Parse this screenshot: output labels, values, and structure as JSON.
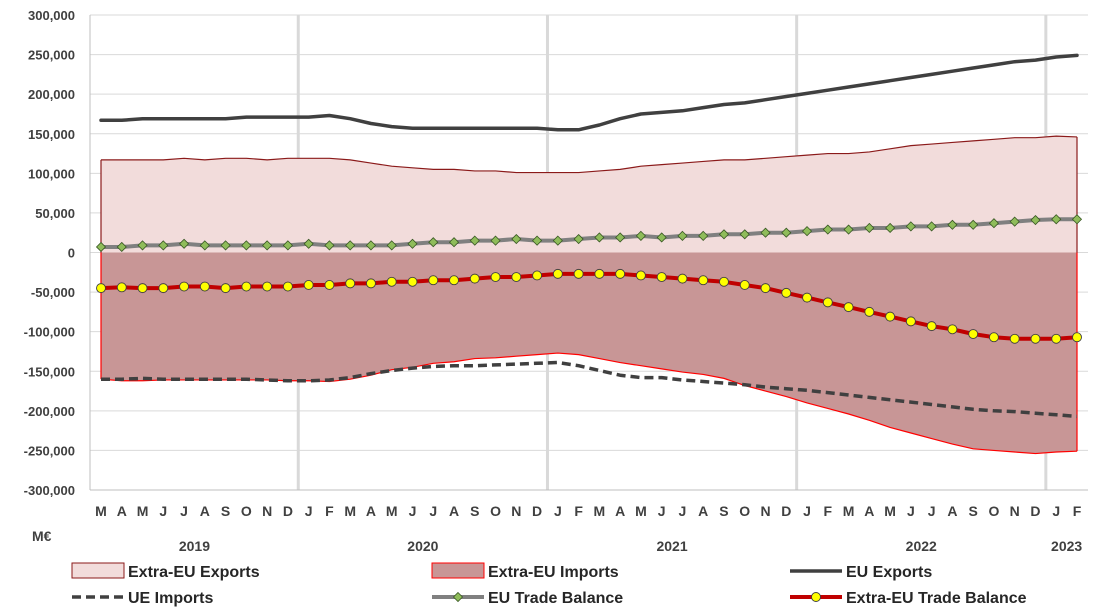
{
  "chart_data": {
    "type": "line",
    "unit_label": "M€",
    "ylim": [
      -300000,
      300000
    ],
    "yticks": [
      300000,
      250000,
      200000,
      150000,
      100000,
      50000,
      0,
      -50000,
      -100000,
      -150000,
      -200000,
      -250000,
      -300000
    ],
    "ytick_labels": [
      "300,000",
      "250,000",
      "200,000",
      "150,000",
      "100,000",
      "50,000",
      "0",
      "-50,000",
      "-100,000",
      "-150,000",
      "-200,000",
      "-250,000",
      "-300,000"
    ],
    "months": [
      "M",
      "A",
      "M",
      "J",
      "J",
      "A",
      "S",
      "O",
      "N",
      "D",
      "J",
      "F",
      "M",
      "A",
      "M",
      "J",
      "J",
      "A",
      "S",
      "O",
      "N",
      "D",
      "J",
      "F",
      "M",
      "A",
      "M",
      "J",
      "J",
      "A",
      "S",
      "O",
      "N",
      "D",
      "J",
      "F",
      "M",
      "A",
      "M",
      "J",
      "J",
      "A",
      "S",
      "O",
      "N",
      "D",
      "J",
      "F"
    ],
    "years": [
      {
        "label": "2019",
        "start": 0,
        "end": 9
      },
      {
        "label": "2020",
        "start": 10,
        "end": 21
      },
      {
        "label": "2021",
        "start": 22,
        "end": 33
      },
      {
        "label": "2022",
        "start": 34,
        "end": 45
      },
      {
        "label": "2023",
        "start": 46,
        "end": 47
      }
    ],
    "year_separators": [
      9.5,
      21.5,
      33.5,
      45.5
    ],
    "grid": true,
    "legend_position": "bottom",
    "series": [
      {
        "name": "Extra-EU Exports",
        "kind": "area",
        "fill": "#f2dcdb",
        "stroke": "#8b1a1a",
        "values": [
          117000,
          117000,
          117000,
          117000,
          119000,
          117000,
          119000,
          119000,
          117000,
          119000,
          119000,
          119000,
          117000,
          113000,
          109000,
          107000,
          105000,
          105000,
          103000,
          103000,
          101000,
          101000,
          101000,
          101000,
          103000,
          105000,
          109000,
          111000,
          113000,
          115000,
          117000,
          117000,
          119000,
          121000,
          123000,
          125000,
          125000,
          127000,
          131000,
          135000,
          137000,
          139000,
          141000,
          143000,
          145000,
          145000,
          147000,
          146000
        ]
      },
      {
        "name": "Extra-EU Imports",
        "kind": "area",
        "fill": "#c89696",
        "stroke": "#ff0000",
        "values": [
          -160000,
          -162000,
          -162000,
          -161000,
          -161000,
          -161000,
          -161000,
          -161000,
          -161000,
          -162000,
          -162000,
          -163000,
          -160000,
          -155000,
          -148000,
          -145000,
          -140000,
          -138000,
          -134000,
          -133000,
          -131000,
          -129000,
          -127000,
          -129000,
          -134000,
          -139000,
          -143000,
          -147000,
          -151000,
          -154000,
          -159000,
          -168000,
          -175000,
          -182000,
          -190000,
          -197000,
          -204000,
          -212000,
          -221000,
          -228000,
          -235000,
          -242000,
          -248000,
          -250000,
          -252000,
          -254000,
          -252000,
          -251000
        ]
      },
      {
        "name": "EU Exports",
        "kind": "line",
        "color": "#404040",
        "values": [
          167000,
          167000,
          169000,
          169000,
          169000,
          169000,
          169000,
          171000,
          171000,
          171000,
          171000,
          173000,
          169000,
          163000,
          159000,
          157000,
          157000,
          157000,
          157000,
          157000,
          157000,
          157000,
          155000,
          155000,
          161000,
          169000,
          175000,
          177000,
          179000,
          183000,
          187000,
          189000,
          193000,
          197000,
          201000,
          205000,
          209000,
          213000,
          217000,
          221000,
          225000,
          229000,
          233000,
          237000,
          241000,
          243000,
          247000,
          249000
        ]
      },
      {
        "name": "UE Imports",
        "kind": "dashed",
        "color": "#404040",
        "values": [
          -160000,
          -160000,
          -159000,
          -160000,
          -160000,
          -160000,
          -160000,
          -160000,
          -161000,
          -162000,
          -162000,
          -161000,
          -158000,
          -153000,
          -149000,
          -146000,
          -144000,
          -143000,
          -143000,
          -142000,
          -141000,
          -140000,
          -139000,
          -143000,
          -149000,
          -155000,
          -158000,
          -158000,
          -161000,
          -163000,
          -165000,
          -167000,
          -170000,
          -172000,
          -174000,
          -177000,
          -180000,
          -183000,
          -186000,
          -189000,
          -192000,
          -195000,
          -198000,
          -200000,
          -201000,
          -203000,
          -205000,
          -207000
        ]
      },
      {
        "name": "EU Trade Balance",
        "kind": "marker-line",
        "color": "#808080",
        "marker_fill": "#8fbc5a",
        "marker_stroke": "#385723",
        "values": [
          7000,
          7000,
          9000,
          9000,
          11000,
          9000,
          9000,
          9000,
          9000,
          9000,
          11000,
          9000,
          9000,
          9000,
          9000,
          11000,
          13000,
          13000,
          15000,
          15000,
          17000,
          15000,
          15000,
          17000,
          19000,
          19000,
          21000,
          19000,
          21000,
          21000,
          23000,
          23000,
          25000,
          25000,
          27000,
          29000,
          29000,
          31000,
          31000,
          33000,
          33000,
          35000,
          35000,
          37000,
          39000,
          41000,
          42000,
          42000
        ]
      },
      {
        "name": "Extra-EU Trade Balance",
        "kind": "marker-line",
        "color": "#c00000",
        "marker_fill": "#ffff00",
        "marker_stroke": "#404040",
        "values": [
          -45000,
          -44000,
          -45000,
          -45000,
          -43000,
          -43000,
          -45000,
          -43000,
          -43000,
          -43000,
          -41000,
          -41000,
          -39000,
          -39000,
          -37000,
          -37000,
          -35000,
          -35000,
          -33000,
          -31000,
          -31000,
          -29000,
          -27000,
          -27000,
          -27000,
          -27000,
          -29000,
          -31000,
          -33000,
          -35000,
          -37000,
          -41000,
          -45000,
          -51000,
          -57000,
          -63000,
          -69000,
          -75000,
          -81000,
          -87000,
          -93000,
          -97000,
          -103000,
          -107000,
          -109000,
          -109000,
          -109000,
          -107000
        ]
      }
    ]
  }
}
